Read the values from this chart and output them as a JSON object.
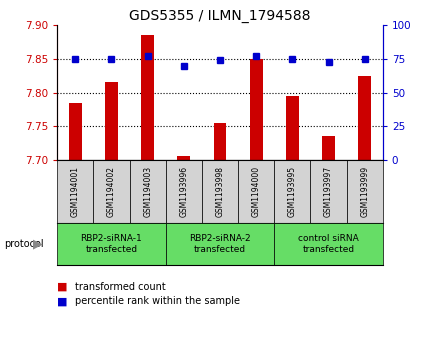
{
  "title": "GDS5355 / ILMN_1794588",
  "samples": [
    "GSM1194001",
    "GSM1194002",
    "GSM1194003",
    "GSM1193996",
    "GSM1193998",
    "GSM1194000",
    "GSM1193995",
    "GSM1193997",
    "GSM1193999"
  ],
  "red_values": [
    7.785,
    7.815,
    7.885,
    7.705,
    7.755,
    7.85,
    7.795,
    7.735,
    7.825
  ],
  "blue_values": [
    75,
    75,
    77,
    70,
    74,
    77,
    75,
    73,
    75
  ],
  "ylim_left": [
    7.7,
    7.9
  ],
  "ylim_right": [
    0,
    100
  ],
  "yticks_left": [
    7.7,
    7.75,
    7.8,
    7.85,
    7.9
  ],
  "yticks_right": [
    0,
    25,
    50,
    75,
    100
  ],
  "group_labels": [
    "RBP2-siRNA-1\ntransfected",
    "RBP2-siRNA-2\ntransfected",
    "control siRNA\ntransfected"
  ],
  "group_starts": [
    0,
    3,
    6
  ],
  "group_ends": [
    2,
    5,
    8
  ],
  "legend_red_label": "transformed count",
  "legend_blue_label": "percentile rank within the sample",
  "protocol_label": "protocol",
  "bar_color": "#cc0000",
  "dot_color": "#0000cc",
  "sample_bg_color": "#d3d3d3",
  "group_bg_color": "#66dd66",
  "bar_width": 0.35,
  "bar_base": 7.7,
  "grid_vals": [
    7.75,
    7.8,
    7.85
  ]
}
